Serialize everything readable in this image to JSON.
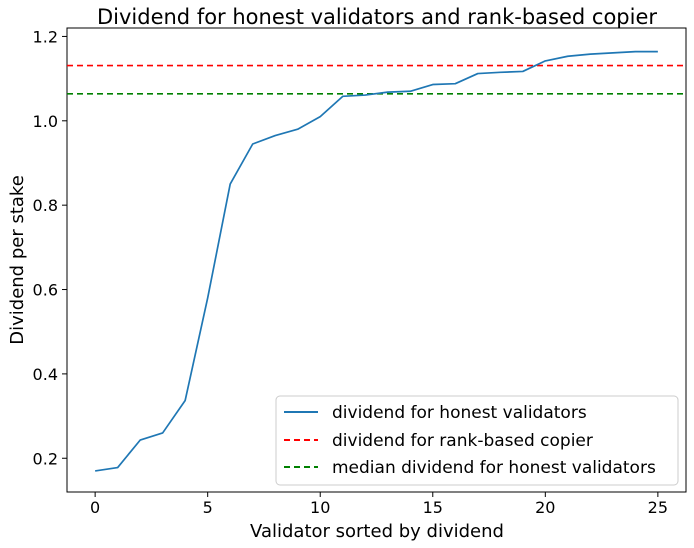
{
  "chart_data": {
    "type": "line",
    "title": "Dividend for honest validators and rank-based copier",
    "xlabel": "Validator sorted by dividend",
    "ylabel": "Dividend per stake",
    "xlim": [
      -1.25,
      26.25
    ],
    "ylim": [
      0.12,
      1.22
    ],
    "xticks": [
      0,
      5,
      10,
      15,
      20,
      25
    ],
    "yticks": [
      0.2,
      0.4,
      0.6,
      0.8,
      1.0,
      1.2
    ],
    "xtick_labels": [
      "0",
      "5",
      "10",
      "15",
      "20",
      "25"
    ],
    "ytick_labels": [
      "0.2",
      "0.4",
      "0.6",
      "0.8",
      "1.0",
      "1.2"
    ],
    "grid": false,
    "legend_position": "bottom-right",
    "series": [
      {
        "name": "dividend for honest validators",
        "style": "solid",
        "color": "#1f77b4",
        "x": [
          0,
          1,
          2,
          3,
          4,
          5,
          6,
          7,
          8,
          9,
          10,
          11,
          12,
          13,
          14,
          15,
          16,
          17,
          18,
          19,
          20,
          21,
          22,
          23,
          24,
          25
        ],
        "values": [
          0.17,
          0.178,
          0.243,
          0.26,
          0.337,
          0.58,
          0.85,
          0.945,
          0.965,
          0.98,
          1.01,
          1.058,
          1.061,
          1.068,
          1.07,
          1.086,
          1.088,
          1.112,
          1.115,
          1.117,
          1.142,
          1.153,
          1.158,
          1.161,
          1.164,
          1.164
        ]
      },
      {
        "name": "dividend for rank-based copier",
        "style": "dashed",
        "color": "#ff0000",
        "constant": 1.131
      },
      {
        "name": "median dividend for honest validators",
        "style": "dashed",
        "color": "#008000",
        "constant": 1.064
      }
    ]
  }
}
